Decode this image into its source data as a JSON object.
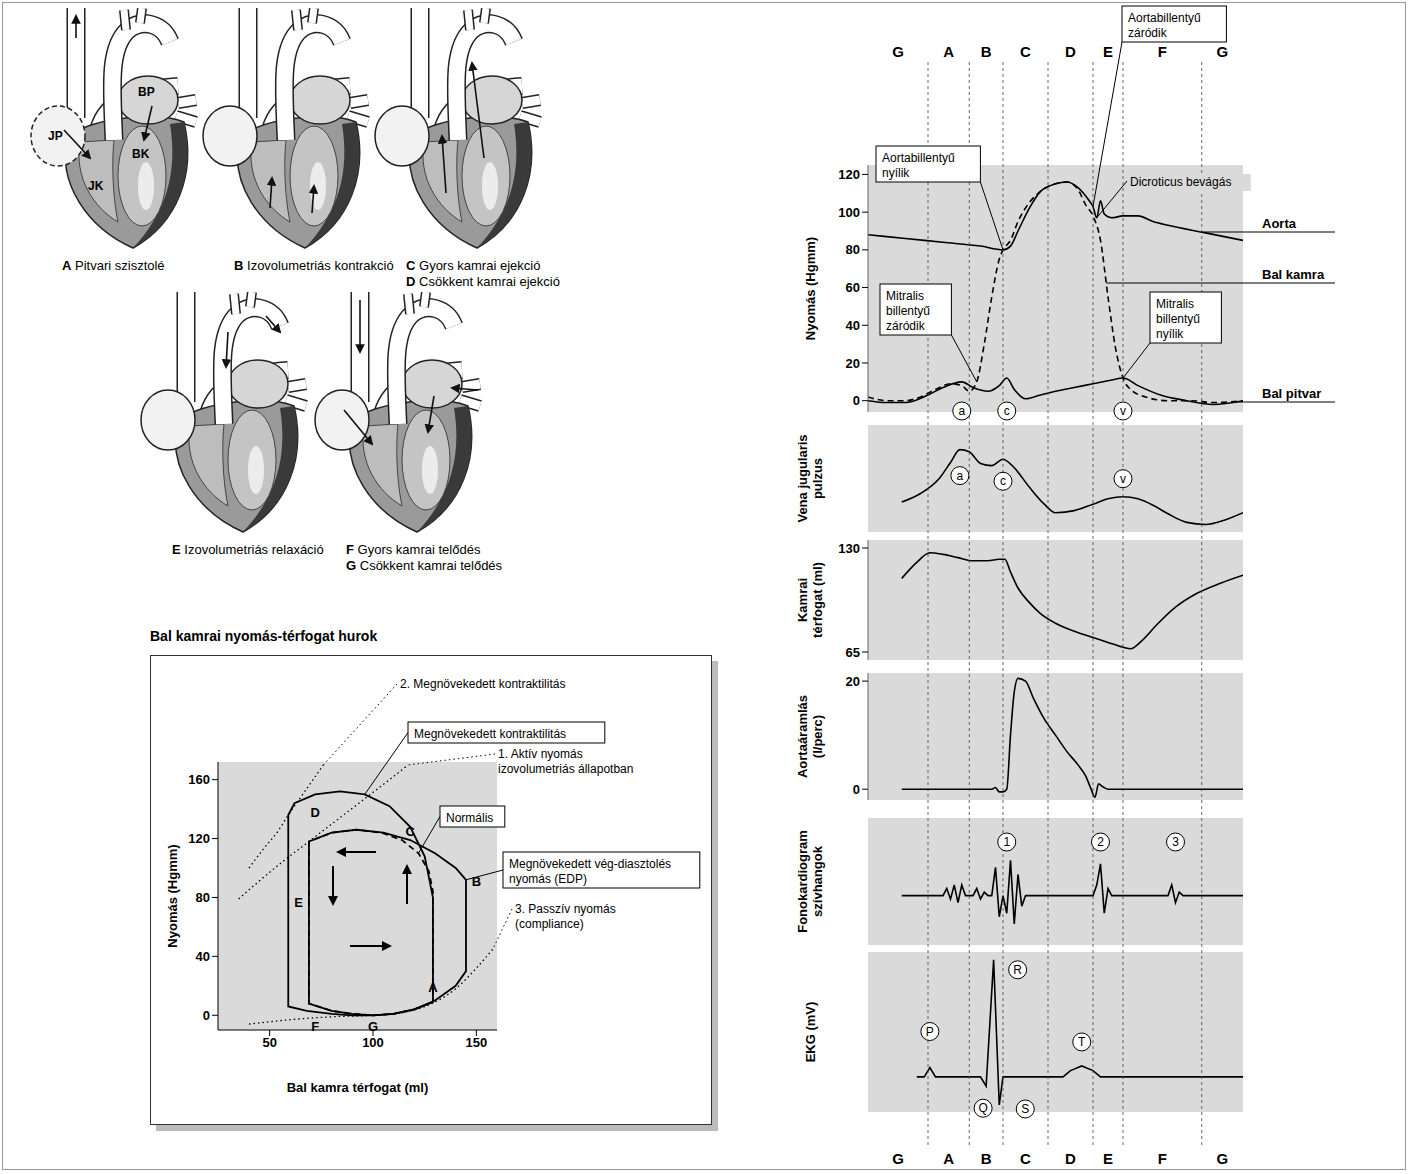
{
  "heart_phases": [
    {
      "chamber_labels": [
        "JP",
        "BP",
        "JK",
        "BK"
      ],
      "phases": [
        {
          "letter": "A",
          "label": "Pitvari szisztolé"
        }
      ]
    },
    {
      "phases": [
        {
          "letter": "B",
          "label": "Izovolumetriás kontrakció"
        }
      ]
    },
    {
      "phases": [
        {
          "letter": "C",
          "label": "Gyors kamrai ejekció"
        },
        {
          "letter": "D",
          "label": "Csökkent kamrai ejekció"
        }
      ]
    },
    {
      "phases": [
        {
          "letter": "E",
          "label": "Izovolumetriás relaxáció"
        }
      ]
    },
    {
      "phases": [
        {
          "letter": "F",
          "label": "Gyors kamrai telődés"
        },
        {
          "letter": "G",
          "label": "Csökkent kamrai telődés"
        }
      ]
    }
  ],
  "phases": {
    "labels": [
      "G",
      "A",
      "B",
      "C",
      "D",
      "E",
      "F",
      "G"
    ],
    "boundaries": [
      16,
      27,
      36,
      48,
      60,
      68,
      89
    ]
  },
  "chart_data": [
    {
      "type": "line",
      "title": "Bal kamrai nyomás-térfogat hurok",
      "x_label": "Bal kamra térfogat (ml)",
      "y_label": "Nyomás (Hgmm)",
      "xlim": [
        25,
        160
      ],
      "ylim": [
        -10,
        172
      ],
      "xticks": [
        50,
        100,
        150
      ],
      "yticks": [
        0,
        40,
        80,
        120,
        160
      ],
      "series": [
        {
          "name": "Normális",
          "color": "#000000",
          "line_style": "dashed",
          "x": [
            100,
            110,
            120,
            129,
            129,
            127,
            122,
            114,
            104,
            92,
            80,
            69,
            69,
            80,
            90,
            100
          ],
          "values": [
            0,
            1,
            4,
            9,
            84,
            98,
            110,
            119,
            124,
            126,
            124,
            118,
            8,
            3,
            1,
            0
          ]
        },
        {
          "name": "Megnövekedett kontraktilitás",
          "color": "#000000",
          "line_style": "solid",
          "x": [
            100,
            110,
            120,
            129,
            129,
            125,
            118,
            108,
            96,
            84,
            72,
            62,
            59,
            59,
            68,
            80,
            90,
            100
          ],
          "values": [
            0,
            1,
            4,
            9,
            80,
            108,
            128,
            142,
            150,
            152,
            150,
            144,
            136,
            6,
            3,
            1,
            0,
            0
          ]
        },
        {
          "name": "Megnövekedett vég-diasztolés nyomás (EDP)",
          "color": "#000000",
          "line_style": "solid",
          "x": [
            100,
            110,
            120,
            130,
            140,
            145,
            145,
            140,
            130,
            118,
            105,
            92,
            80,
            69,
            69,
            80,
            90,
            100
          ],
          "values": [
            0,
            1,
            4,
            10,
            20,
            30,
            92,
            100,
            110,
            119,
            124,
            126,
            124,
            118,
            8,
            3,
            1,
            0
          ]
        },
        {
          "name": "1. Aktív nyomás izovolumetriás állapotban",
          "color": "#000000",
          "line_style": "dotted",
          "x": [
            35,
            44,
            56,
            69,
            82,
            95,
            108,
            117
          ],
          "values": [
            79,
            90,
            104,
            118,
            132,
            146,
            160,
            170
          ]
        },
        {
          "name": "2. Megnövekedett kontraktilitás",
          "color": "#000000",
          "line_style": "dotted",
          "x": [
            40,
            47,
            54,
            59,
            65,
            71,
            76
          ],
          "values": [
            100,
            113,
            125,
            136,
            148,
            160,
            170
          ]
        },
        {
          "name": "3. Passzív nyomás (compliance)",
          "color": "#000000",
          "line_style": "dotted",
          "x": [
            40,
            60,
            80,
            100,
            115,
            130,
            140,
            150,
            158
          ],
          "values": [
            -6,
            -3,
            -1,
            0,
            2,
            9,
            18,
            32,
            45
          ]
        }
      ],
      "points": [
        {
          "label": "A",
          "x": 129,
          "y": 19
        },
        {
          "label": "B",
          "x": 150,
          "y": 91
        },
        {
          "label": "C",
          "x": 118,
          "y": 125
        },
        {
          "label": "D",
          "x": 72,
          "y": 138
        },
        {
          "label": "E",
          "x": 64,
          "y": 77
        },
        {
          "label": "F",
          "x": 72,
          "y": -7
        },
        {
          "label": "G",
          "x": 100,
          "y": -7
        }
      ]
    },
    {
      "type": "line",
      "y_label": "Nyomás (Hgmm)",
      "xlim": [
        0,
        100
      ],
      "ylim": [
        -6,
        125
      ],
      "yticks": [
        0,
        20,
        40,
        60,
        80,
        100,
        120
      ],
      "tick_labels": "y",
      "series": [
        {
          "name": "Aorta",
          "color": "#000000",
          "line_style": "solid",
          "x": [
            0,
            10,
            20,
            30,
            36,
            38,
            40,
            43,
            46,
            50,
            53,
            56,
            59,
            60,
            61,
            62,
            63,
            65,
            68,
            72,
            76,
            80,
            90,
            100
          ],
          "values": [
            88,
            86,
            84,
            82,
            80,
            82,
            90,
            102,
            111,
            115,
            116,
            113,
            106,
            103,
            97,
            106,
            99,
            97,
            98,
            98,
            95,
            93,
            89,
            85
          ]
        },
        {
          "name": "Bal kamra",
          "color": "#000000",
          "line_style": "dashed",
          "x": [
            0,
            5,
            10,
            14,
            18,
            22,
            25,
            27,
            29,
            31,
            33,
            35,
            36,
            38,
            40,
            43,
            46,
            50,
            53,
            56,
            58,
            60,
            62,
            64,
            66,
            68,
            70,
            74,
            80,
            86,
            92,
            100
          ],
          "values": [
            2,
            0,
            0,
            2,
            6,
            9,
            8,
            5,
            10,
            30,
            55,
            75,
            80,
            85,
            95,
            105,
            111,
            115,
            116,
            112,
            104,
            98,
            85,
            55,
            28,
            12,
            6,
            2,
            0,
            0,
            -1,
            0
          ]
        },
        {
          "name": "Bal pitvar",
          "color": "#000000",
          "line_style": "solid",
          "x": [
            0,
            5,
            10,
            16,
            20,
            25,
            28,
            32,
            35,
            37,
            39,
            42,
            46,
            50,
            55,
            60,
            65,
            68,
            72,
            78,
            85,
            92,
            100
          ],
          "values": [
            0,
            -1,
            -1,
            3,
            7,
            10,
            7,
            5,
            8,
            12,
            6,
            1,
            3,
            5,
            7,
            9,
            11,
            12,
            8,
            3,
            0,
            -2,
            0
          ]
        }
      ],
      "annotations": [
        {
          "text": "Aortabillentyű nyílik",
          "x": 36,
          "y": 80
        },
        {
          "text": "Aortabillentyű záródik",
          "x": 60,
          "y": 103
        },
        {
          "text": "Dicroticus bevágás",
          "x": 61,
          "y": 97
        },
        {
          "text": "Mitralis billentyű záródik",
          "x": 29,
          "y": 10
        },
        {
          "text": "Mitralis billentyű nyílik",
          "x": 68,
          "y": 12
        }
      ],
      "waves": [
        {
          "text": "a",
          "x": 25
        },
        {
          "text": "c",
          "x": 37
        },
        {
          "text": "v",
          "x": 68
        }
      ]
    },
    {
      "type": "line",
      "y_label": "Vena jugularis pulzus",
      "xlim": [
        0,
        100
      ],
      "ylim": [
        0,
        100
      ],
      "tick_labels": false,
      "color": "#000000",
      "x": [
        9,
        14,
        19,
        22,
        24.5,
        27,
        30,
        33,
        36,
        39,
        43,
        47,
        50,
        55,
        60,
        64,
        68,
        72,
        76,
        80,
        85,
        90,
        95,
        100
      ],
      "values": [
        28,
        36,
        50,
        65,
        77,
        75,
        64,
        62,
        68,
        60,
        42,
        26,
        18,
        20,
        26,
        31,
        33,
        31,
        25,
        17,
        9,
        7,
        11,
        18
      ],
      "waves": [
        {
          "text": "a",
          "x": 24.5
        },
        {
          "text": "c",
          "x": 36
        },
        {
          "text": "v",
          "x": 68
        }
      ]
    },
    {
      "type": "line",
      "y_label": "Kamrai térfogat (ml)",
      "xlim": [
        0,
        100
      ],
      "ylim": [
        60,
        135
      ],
      "yticks": [
        65,
        130
      ],
      "tick_labels": "y",
      "color": "#000000",
      "x": [
        9,
        13,
        16.5,
        20,
        24,
        28,
        32,
        35,
        36.5,
        38,
        40,
        43,
        46,
        50,
        55,
        60,
        64,
        68,
        70,
        73,
        77,
        82,
        88,
        94,
        100
      ],
      "values": [
        111,
        121,
        127,
        126,
        124,
        122,
        122,
        123,
        123,
        115,
        105,
        96,
        89,
        83,
        78,
        74,
        71,
        68,
        67,
        72,
        82,
        93,
        102,
        108,
        113
      ]
    },
    {
      "type": "line",
      "y_label": "Aortaáramlás (l/perc)",
      "xlim": [
        0,
        100
      ],
      "ylim": [
        -2,
        21.5
      ],
      "yticks": [
        0,
        20
      ],
      "tick_labels": "y",
      "color": "#000000",
      "x": [
        9,
        33,
        34,
        35,
        36,
        37,
        38,
        39,
        40,
        42,
        44,
        47,
        50,
        53,
        56,
        58,
        59.5,
        60.5,
        61.5,
        62.5,
        64,
        100
      ],
      "values": [
        0,
        0,
        0.3,
        -0.5,
        -0.5,
        0,
        10,
        18,
        20.5,
        20,
        17,
        13,
        10,
        7,
        4.5,
        2.5,
        0,
        -1.5,
        1,
        0.5,
        0,
        0
      ]
    },
    {
      "type": "line",
      "y_label": "Fonokardiogram szívhangok",
      "xlim": [
        0,
        100
      ],
      "ylim": [
        -14,
        22
      ],
      "tick_labels": false,
      "color": "#000000",
      "x": [
        9,
        20,
        21,
        22,
        23,
        24,
        25,
        26,
        28,
        29,
        30,
        31,
        32,
        33,
        34,
        35,
        36,
        37,
        38,
        39,
        40,
        41,
        42,
        60,
        61,
        62,
        63,
        64,
        65,
        80,
        81,
        82,
        83,
        84,
        100
      ],
      "values": [
        0,
        0,
        2,
        -1,
        3,
        -2,
        3,
        0,
        0,
        2,
        -1,
        1,
        0,
        0,
        8,
        -6,
        0,
        -5,
        10,
        -8,
        6,
        -3,
        0,
        0,
        3,
        9,
        -5,
        2,
        0,
        0,
        3,
        -2,
        1,
        0,
        0
      ],
      "sounds": [
        {
          "text": "1",
          "x": 37
        },
        {
          "text": "2",
          "x": 62
        },
        {
          "text": "3",
          "x": 82
        }
      ]
    },
    {
      "type": "line",
      "y_label": "EKG (mV)",
      "xlim": [
        0,
        100
      ],
      "ylim": [
        -0.45,
        1.6
      ],
      "tick_labels": false,
      "color": "#000000",
      "x": [
        13,
        15,
        16.5,
        18,
        30,
        31.5,
        33.5,
        35,
        36,
        52,
        54,
        57,
        60,
        62,
        100
      ],
      "values": [
        0,
        0,
        0.12,
        0,
        0,
        -0.12,
        1.5,
        -0.36,
        0,
        0,
        0.08,
        0.14,
        0.08,
        0,
        0
      ],
      "waves": [
        {
          "text": "P",
          "x": 16.5,
          "y": 0.12
        },
        {
          "text": "Q",
          "x": 31.5,
          "y": -0.12
        },
        {
          "text": "R",
          "x": 33.5,
          "y": 1.5
        },
        {
          "text": "S",
          "x": 35,
          "y": -0.36
        },
        {
          "text": "T",
          "x": 57,
          "y": 0.14
        }
      ]
    }
  ]
}
